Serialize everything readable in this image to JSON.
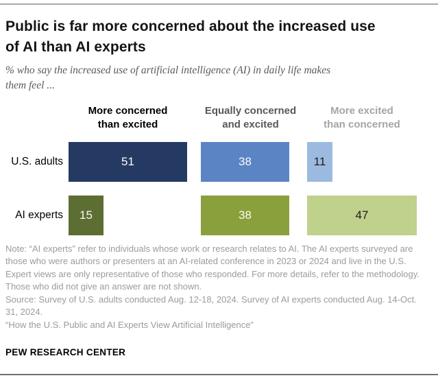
{
  "title_lines": [
    "Public is far more concerned about the increased use",
    "of AI than AI experts"
  ],
  "subtitle_lines": [
    "% who say the increased use of artificial intelligence (AI) in daily life makes",
    "them feel ..."
  ],
  "chart_data": {
    "type": "bar",
    "orientation": "horizontal",
    "title": "Public is far more concerned about the increased use of AI than AI experts",
    "subtitle": "% who say the increased use of artificial intelligence (AI) in daily life makes them feel ...",
    "unit": "percent",
    "categories": [
      "U.S. adults",
      "AI experts"
    ],
    "column_headers": [
      "More concerned than excited",
      "Equally concerned and excited",
      "More excited than concerned"
    ],
    "column_header_lines": [
      [
        "More concerned",
        "than excited"
      ],
      [
        "Equally concerned",
        "and excited"
      ],
      [
        "More excited",
        "than concerned"
      ]
    ],
    "header_colors": [
      "#000000",
      "#58585a",
      "#a5a5a7"
    ],
    "series": [
      {
        "name": "U.S. adults",
        "values": [
          51,
          38,
          11
        ]
      },
      {
        "name": "AI experts",
        "values": [
          15,
          38,
          47
        ]
      }
    ],
    "colors": [
      [
        "#253a63",
        "#5b84c4",
        "#9cbae0"
      ],
      [
        "#5d6e32",
        "#8aa03c",
        "#c0d18c"
      ]
    ],
    "xlim": [
      0,
      55
    ],
    "grid": false,
    "legend_position": "column headers above bars",
    "value_labels": "inside bars"
  },
  "notes": {
    "note": "Note: “AI experts” refer to individuals whose work or research relates to AI. The AI experts surveyed are those who were authors or presenters at an AI-related conference in 2023 or 2024 and live in the U.S. Expert views are only representative of those who responded. For more details, refer to the methodology. Those who did not give an answer are not shown.",
    "source": "Source: Survey of U.S. adults conducted Aug. 12-18, 2024. Survey of AI experts conducted Aug. 14-Oct. 31, 2024.",
    "attribution": "“How the U.S. Public and AI Experts View Artificial Intelligence”"
  },
  "brand": "PEW RESEARCH CENTER"
}
